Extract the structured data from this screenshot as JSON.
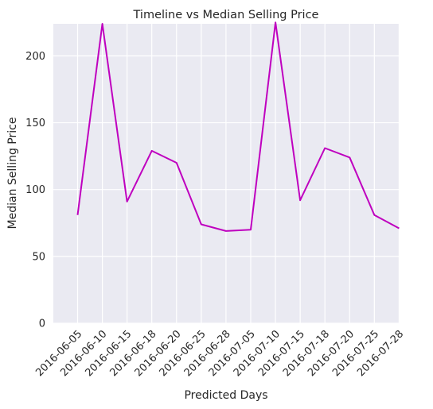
{
  "chart_data": {
    "type": "line",
    "title": "Timeline vs Median Selling Price",
    "xlabel": "Predicted Days",
    "ylabel": "Median Selling Price",
    "categories": [
      "2016-06-05",
      "2016-06-10",
      "2016-06-15",
      "2016-06-18",
      "2016-06-20",
      "2016-06-25",
      "2016-06-28",
      "2016-07-05",
      "2016-07-10",
      "2016-07-15",
      "2016-07-18",
      "2016-07-20",
      "2016-07-25",
      "2016-07-28"
    ],
    "series": [
      {
        "color": "#bf00bf",
        "values": [
          81,
          224,
          91,
          129,
          120,
          74,
          69,
          70,
          225,
          92,
          131,
          124,
          81,
          71
        ]
      }
    ],
    "ylim": [
      0,
      224
    ],
    "yticks": [
      0,
      50,
      100,
      150,
      200
    ],
    "grid": true,
    "legend": "none"
  }
}
